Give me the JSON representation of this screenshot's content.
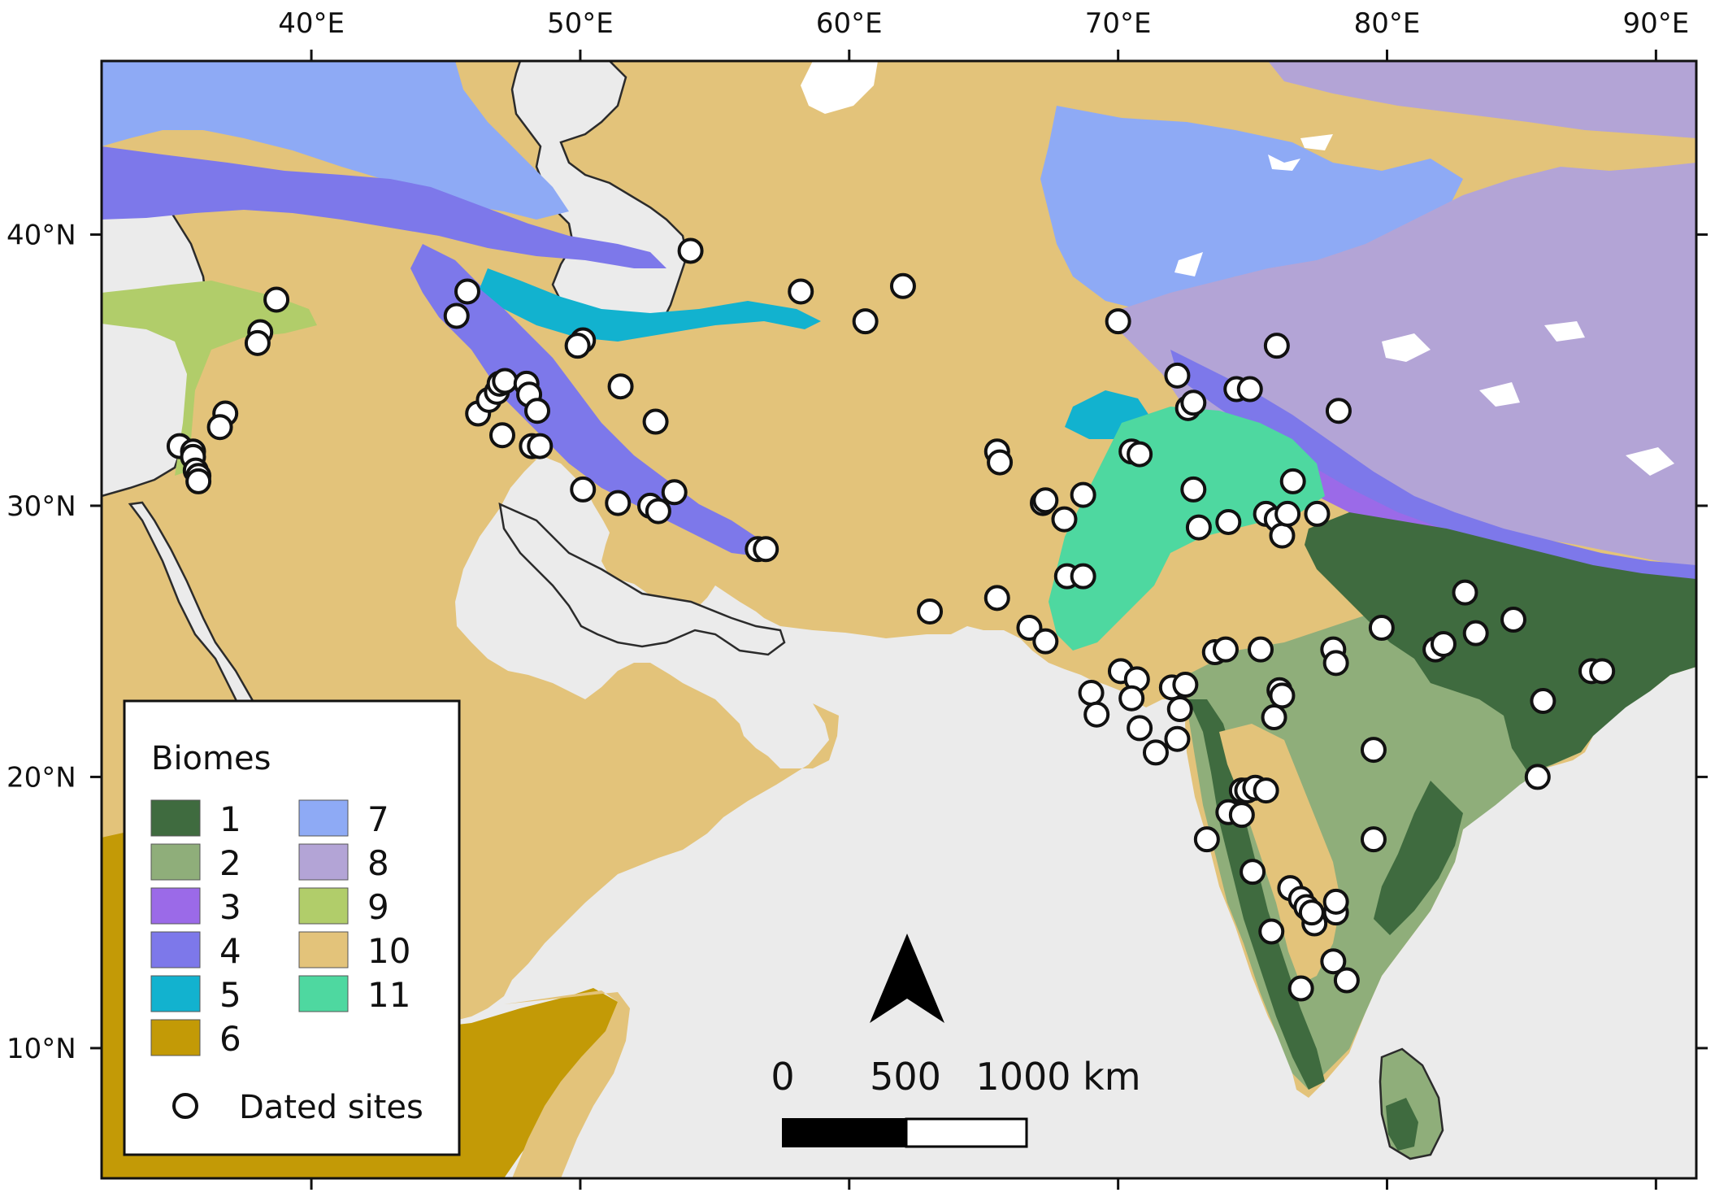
{
  "map": {
    "lon_range": [
      32.2,
      91.5
    ],
    "lat_range": [
      5.2,
      46.4
    ],
    "lon_ticks": [
      {
        "value": 40,
        "label": "40°E"
      },
      {
        "value": 50,
        "label": "50°E"
      },
      {
        "value": 60,
        "label": "60°E"
      },
      {
        "value": 70,
        "label": "70°E"
      },
      {
        "value": 80,
        "label": "80°E"
      },
      {
        "value": 90,
        "label": "90°E"
      }
    ],
    "lat_ticks": [
      {
        "value": 40,
        "label": "40°N"
      },
      {
        "value": 30,
        "label": "30°N"
      },
      {
        "value": 20,
        "label": "20°N"
      },
      {
        "value": 10,
        "label": "10°N"
      }
    ]
  },
  "colors": {
    "water": "#ebebeb",
    "coast": "#2b2b2b",
    "biome_1": "#3f6b3f",
    "biome_2": "#8fae7a",
    "biome_3": "#9b6ae8",
    "biome_4": "#7d78ea",
    "biome_5": "#12b2cf",
    "biome_6": "#c39a06",
    "biome_7": "#8eaaf5",
    "biome_8": "#b3a4d6",
    "biome_9": "#b1cd6a",
    "biome_10": "#e3c37a",
    "biome_11": "#4ed8a0",
    "snow": "#ffffff"
  },
  "legend": {
    "title": "Biomes",
    "entries": [
      {
        "label": "1",
        "color": "#3f6b3f"
      },
      {
        "label": "2",
        "color": "#8fae7a"
      },
      {
        "label": "3",
        "color": "#9b6ae8"
      },
      {
        "label": "4",
        "color": "#7d78ea"
      },
      {
        "label": "5",
        "color": "#12b2cf"
      },
      {
        "label": "6",
        "color": "#c39a06"
      },
      {
        "label": "7",
        "color": "#8eaaf5"
      },
      {
        "label": "8",
        "color": "#b3a4d6"
      },
      {
        "label": "9",
        "color": "#b1cd6a"
      },
      {
        "label": "10",
        "color": "#e3c37a"
      },
      {
        "label": "11",
        "color": "#4ed8a0"
      }
    ],
    "sites_label": "Dated sites"
  },
  "scale_bar": {
    "labels": [
      "0",
      "500",
      "1000 km"
    ]
  },
  "sites": [
    [
      38.7,
      37.6
    ],
    [
      38.1,
      36.4
    ],
    [
      38.0,
      36.0
    ],
    [
      36.8,
      33.4
    ],
    [
      36.6,
      32.9
    ],
    [
      35.1,
      32.2
    ],
    [
      35.6,
      32.0
    ],
    [
      35.6,
      31.8
    ],
    [
      35.7,
      31.3
    ],
    [
      35.8,
      31.1
    ],
    [
      35.8,
      30.9
    ],
    [
      45.4,
      37.0
    ],
    [
      45.8,
      37.9
    ],
    [
      46.2,
      33.4
    ],
    [
      46.6,
      33.9
    ],
    [
      46.9,
      34.2
    ],
    [
      47.0,
      34.5
    ],
    [
      47.2,
      34.6
    ],
    [
      47.1,
      32.6
    ],
    [
      48.0,
      34.5
    ],
    [
      48.1,
      34.1
    ],
    [
      48.4,
      33.5
    ],
    [
      48.2,
      32.2
    ],
    [
      48.5,
      32.2
    ],
    [
      50.1,
      36.1
    ],
    [
      49.9,
      35.9
    ],
    [
      51.5,
      34.4
    ],
    [
      52.8,
      33.1
    ],
    [
      50.1,
      30.6
    ],
    [
      51.4,
      30.1
    ],
    [
      52.6,
      30.0
    ],
    [
      52.9,
      29.8
    ],
    [
      53.5,
      30.5
    ],
    [
      56.6,
      28.4
    ],
    [
      56.9,
      28.4
    ],
    [
      54.1,
      39.4
    ],
    [
      58.2,
      37.9
    ],
    [
      60.6,
      36.8
    ],
    [
      62.0,
      38.1
    ],
    [
      63.0,
      26.1
    ],
    [
      65.5,
      26.6
    ],
    [
      65.5,
      32.0
    ],
    [
      65.6,
      31.6
    ],
    [
      66.7,
      25.5
    ],
    [
      67.3,
      25.0
    ],
    [
      67.2,
      30.1
    ],
    [
      67.3,
      30.2
    ],
    [
      68.0,
      29.5
    ],
    [
      68.1,
      27.4
    ],
    [
      68.7,
      27.4
    ],
    [
      68.7,
      30.4
    ],
    [
      70.0,
      36.8
    ],
    [
      70.5,
      32.0
    ],
    [
      70.8,
      31.9
    ],
    [
      72.2,
      34.8
    ],
    [
      72.6,
      33.6
    ],
    [
      72.8,
      33.8
    ],
    [
      72.8,
      30.6
    ],
    [
      73.0,
      29.2
    ],
    [
      74.1,
      29.4
    ],
    [
      74.4,
      34.3
    ],
    [
      74.9,
      34.3
    ],
    [
      75.5,
      29.7
    ],
    [
      75.9,
      29.5
    ],
    [
      76.1,
      28.9
    ],
    [
      76.3,
      29.7
    ],
    [
      76.5,
      30.9
    ],
    [
      75.9,
      35.9
    ],
    [
      77.4,
      29.7
    ],
    [
      78.2,
      33.5
    ],
    [
      69.0,
      23.1
    ],
    [
      69.2,
      22.3
    ],
    [
      70.1,
      23.9
    ],
    [
      70.7,
      23.6
    ],
    [
      70.5,
      22.9
    ],
    [
      70.8,
      21.8
    ],
    [
      71.4,
      20.9
    ],
    [
      72.0,
      23.3
    ],
    [
      72.2,
      21.4
    ],
    [
      72.3,
      22.5
    ],
    [
      72.5,
      23.4
    ],
    [
      73.6,
      24.6
    ],
    [
      74.0,
      24.7
    ],
    [
      75.3,
      24.7
    ],
    [
      75.8,
      22.2
    ],
    [
      76.0,
      23.2
    ],
    [
      76.1,
      23.0
    ],
    [
      78.0,
      24.7
    ],
    [
      78.1,
      24.2
    ],
    [
      79.8,
      25.5
    ],
    [
      81.8,
      24.7
    ],
    [
      82.1,
      24.9
    ],
    [
      82.9,
      26.8
    ],
    [
      83.3,
      25.3
    ],
    [
      84.7,
      25.8
    ],
    [
      87.6,
      23.9
    ],
    [
      88.0,
      23.9
    ],
    [
      85.8,
      22.8
    ],
    [
      79.5,
      21.0
    ],
    [
      85.6,
      20.0
    ],
    [
      73.3,
      17.7
    ],
    [
      74.1,
      18.7
    ],
    [
      74.6,
      18.6
    ],
    [
      74.6,
      19.5
    ],
    [
      74.8,
      19.5
    ],
    [
      75.1,
      19.6
    ],
    [
      75.5,
      19.5
    ],
    [
      79.5,
      17.7
    ],
    [
      75.0,
      16.5
    ],
    [
      76.4,
      15.9
    ],
    [
      76.8,
      15.5
    ],
    [
      77.0,
      15.2
    ],
    [
      77.3,
      14.6
    ],
    [
      77.2,
      15.0
    ],
    [
      78.1,
      15.0
    ],
    [
      78.1,
      15.4
    ],
    [
      75.7,
      14.3
    ],
    [
      78.0,
      13.2
    ],
    [
      76.8,
      12.2
    ],
    [
      78.5,
      12.5
    ]
  ]
}
